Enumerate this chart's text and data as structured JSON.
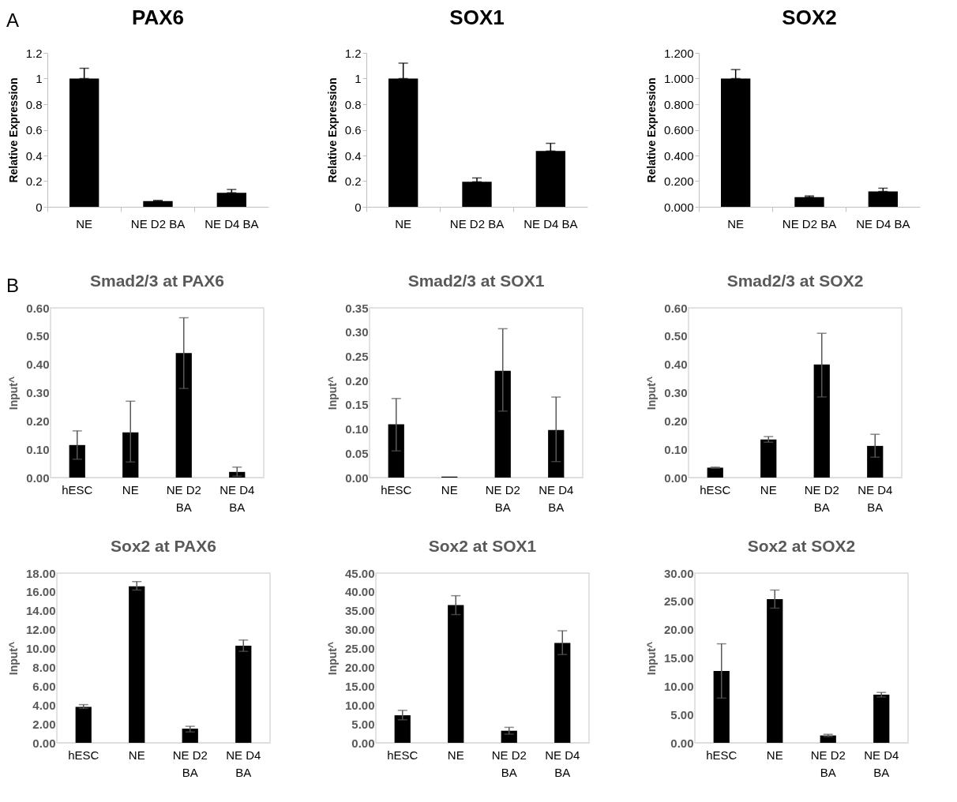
{
  "chart_data": [
    {
      "type": "bar",
      "title": "PAX6",
      "ylabel": "Relative Expression",
      "annotations": [
        "A"
      ],
      "categories": [
        "NE",
        "NE D2 BA",
        "NE D4 BA"
      ],
      "values": [
        1.0,
        0.045,
        0.11
      ],
      "errors": [
        [
          1.0,
          1.08
        ],
        [
          0.045,
          0.05
        ],
        [
          0.11,
          0.135
        ]
      ],
      "color": "#000000",
      "ylim": [
        0,
        1.2
      ],
      "yticks": [
        0,
        0.2,
        0.4,
        0.6,
        0.8,
        1,
        1.2
      ]
    },
    {
      "type": "bar",
      "title": "SOX1",
      "ylabel": "Relative Expression",
      "categories": [
        "NE",
        "NE D2 BA",
        "NE D4 BA"
      ],
      "values": [
        1.0,
        0.195,
        0.435
      ],
      "errors": [
        [
          1.0,
          1.12
        ],
        [
          0.195,
          0.225
        ],
        [
          0.435,
          0.495
        ]
      ],
      "color": "#000000",
      "ylim": [
        0,
        1.2
      ],
      "yticks": [
        0,
        0.2,
        0.4,
        0.6,
        0.8,
        1,
        1.2
      ]
    },
    {
      "type": "bar",
      "title": "SOX2",
      "ylabel": "Relative Expression",
      "categories": [
        "NE",
        "NE D2 BA",
        "NE D4 BA"
      ],
      "values": [
        1.0,
        0.075,
        0.12
      ],
      "errors": [
        [
          1.0,
          1.07
        ],
        [
          0.075,
          0.085
        ],
        [
          0.12,
          0.145
        ]
      ],
      "color": "#000000",
      "ylim": [
        0,
        1.2
      ],
      "yticks": [
        {
          "value": 0,
          "label": "0.000"
        },
        {
          "value": 0.2,
          "label": "0.200"
        },
        {
          "value": 0.4,
          "label": "0.400"
        },
        {
          "value": 0.6,
          "label": "0.600"
        },
        {
          "value": 0.8,
          "label": "0.800"
        },
        {
          "value": 1,
          "label": "1.000"
        },
        {
          "value": 1.2,
          "label": "1.200"
        }
      ]
    },
    {
      "type": "bar",
      "title": "Smad2/3 at PAX6",
      "ylabel": "Input^",
      "annotations": [
        "B"
      ],
      "categories": [
        "hESC",
        "NE",
        "NE D2 BA",
        "NE D4 BA"
      ],
      "values": [
        0.115,
        0.16,
        0.44,
        0.02
      ],
      "errors": [
        [
          0.065,
          0.165
        ],
        [
          0.055,
          0.27
        ],
        [
          0.315,
          0.565
        ],
        [
          0.005,
          0.037
        ]
      ],
      "color": "#000000",
      "ylim": [
        0,
        0.6
      ],
      "yticks": [
        {
          "value": 0,
          "label": "0.00"
        },
        {
          "value": 0.1,
          "label": "0.10"
        },
        {
          "value": 0.2,
          "label": "0.20"
        },
        {
          "value": 0.3,
          "label": "0.30"
        },
        {
          "value": 0.4,
          "label": "0.40"
        },
        {
          "value": 0.5,
          "label": "0.50"
        },
        {
          "value": 0.6,
          "label": "0.60"
        }
      ]
    },
    {
      "type": "bar",
      "title": "Smad2/3 at SOX1",
      "ylabel": "Input^",
      "categories": [
        "hESC",
        "NE",
        "NE D2 BA",
        "NE D4 BA"
      ],
      "values": [
        0.11,
        0.002,
        0.22,
        0.098
      ],
      "errors": [
        [
          0.055,
          0.163
        ],
        null,
        [
          0.137,
          0.307
        ],
        [
          0.033,
          0.166
        ]
      ],
      "color": "#000000",
      "ylim": [
        0,
        0.35
      ],
      "yticks": [
        {
          "value": 0,
          "label": "0.00"
        },
        {
          "value": 0.05,
          "label": "0.05"
        },
        {
          "value": 0.1,
          "label": "0.10"
        },
        {
          "value": 0.15,
          "label": "0.15"
        },
        {
          "value": 0.2,
          "label": "0.20"
        },
        {
          "value": 0.25,
          "label": "0.25"
        },
        {
          "value": 0.3,
          "label": "0.30"
        },
        {
          "value": 0.35,
          "label": "0.35"
        }
      ]
    },
    {
      "type": "bar",
      "title": "Smad2/3 at SOX2",
      "ylabel": "Input^",
      "categories": [
        "hESC",
        "NE",
        "NE D2 BA",
        "NE D4 BA"
      ],
      "values": [
        0.035,
        0.135,
        0.4,
        0.112
      ],
      "errors": [
        [
          0.033,
          0.037
        ],
        [
          0.125,
          0.145
        ],
        [
          0.285,
          0.51
        ],
        [
          0.072,
          0.153
        ]
      ],
      "color": "#000000",
      "ylim": [
        0,
        0.6
      ],
      "yticks": [
        {
          "value": 0,
          "label": "0.00"
        },
        {
          "value": 0.1,
          "label": "0.10"
        },
        {
          "value": 0.2,
          "label": "0.20"
        },
        {
          "value": 0.3,
          "label": "0.30"
        },
        {
          "value": 0.4,
          "label": "0.40"
        },
        {
          "value": 0.5,
          "label": "0.50"
        },
        {
          "value": 0.6,
          "label": "0.60"
        }
      ]
    },
    {
      "type": "bar",
      "title": "Sox2 at PAX6",
      "ylabel": "Input^",
      "categories": [
        "hESC",
        "NE",
        "NE D2 BA",
        "NE D4 BA"
      ],
      "values": [
        3.8,
        16.6,
        1.5,
        10.3
      ],
      "errors": [
        [
          3.65,
          4.05
        ],
        [
          16.2,
          17.1
        ],
        [
          1.15,
          1.75
        ],
        [
          9.7,
          10.9
        ]
      ],
      "color": "#000000",
      "ylim": [
        0,
        18
      ],
      "yticks": [
        {
          "value": 0,
          "label": "0.00"
        },
        {
          "value": 2,
          "label": "2.00"
        },
        {
          "value": 4,
          "label": "4.00"
        },
        {
          "value": 6,
          "label": "6.00"
        },
        {
          "value": 8,
          "label": "8.00"
        },
        {
          "value": 10,
          "label": "10.00"
        },
        {
          "value": 12,
          "label": "12.00"
        },
        {
          "value": 14,
          "label": "14.00"
        },
        {
          "value": 16,
          "label": "16.00"
        },
        {
          "value": 18,
          "label": "18.00"
        }
      ]
    },
    {
      "type": "bar",
      "title": "Sox2 at SOX1",
      "ylabel": "Input^",
      "categories": [
        "hESC",
        "NE",
        "NE D2 BA",
        "NE D4 BA"
      ],
      "values": [
        7.3,
        36.5,
        3.2,
        26.5
      ],
      "errors": [
        [
          6.1,
          8.6
        ],
        [
          34,
          39
        ],
        [
          2.3,
          4.1
        ],
        [
          23.4,
          29.7
        ]
      ],
      "color": "#000000",
      "ylim": [
        0,
        45
      ],
      "yticks": [
        {
          "value": 0,
          "label": "0.00"
        },
        {
          "value": 5,
          "label": "5.00"
        },
        {
          "value": 10,
          "label": "10.00"
        },
        {
          "value": 15,
          "label": "15.00"
        },
        {
          "value": 20,
          "label": "20.00"
        },
        {
          "value": 25,
          "label": "25.00"
        },
        {
          "value": 30,
          "label": "30.00"
        },
        {
          "value": 35,
          "label": "35.00"
        },
        {
          "value": 40,
          "label": "40.00"
        },
        {
          "value": 45,
          "label": "45.00"
        }
      ]
    },
    {
      "type": "bar",
      "title": "Sox2 at SOX2",
      "ylabel": "Input^",
      "categories": [
        "hESC",
        "NE",
        "NE D2 BA",
        "NE D4 BA"
      ],
      "values": [
        12.7,
        25.4,
        1.3,
        8.5
      ],
      "errors": [
        [
          7.9,
          17.5
        ],
        [
          23.8,
          27.0
        ],
        [
          1.1,
          1.5
        ],
        [
          8.1,
          8.9
        ]
      ],
      "color": "#000000",
      "ylim": [
        0,
        30
      ],
      "yticks": [
        {
          "value": 0,
          "label": "0.00"
        },
        {
          "value": 5,
          "label": "5.00"
        },
        {
          "value": 10,
          "label": "10.00"
        },
        {
          "value": 15,
          "label": "15.00"
        },
        {
          "value": 20,
          "label": "20.00"
        },
        {
          "value": 25,
          "label": "25.00"
        },
        {
          "value": 30,
          "label": "30.00"
        }
      ]
    }
  ]
}
